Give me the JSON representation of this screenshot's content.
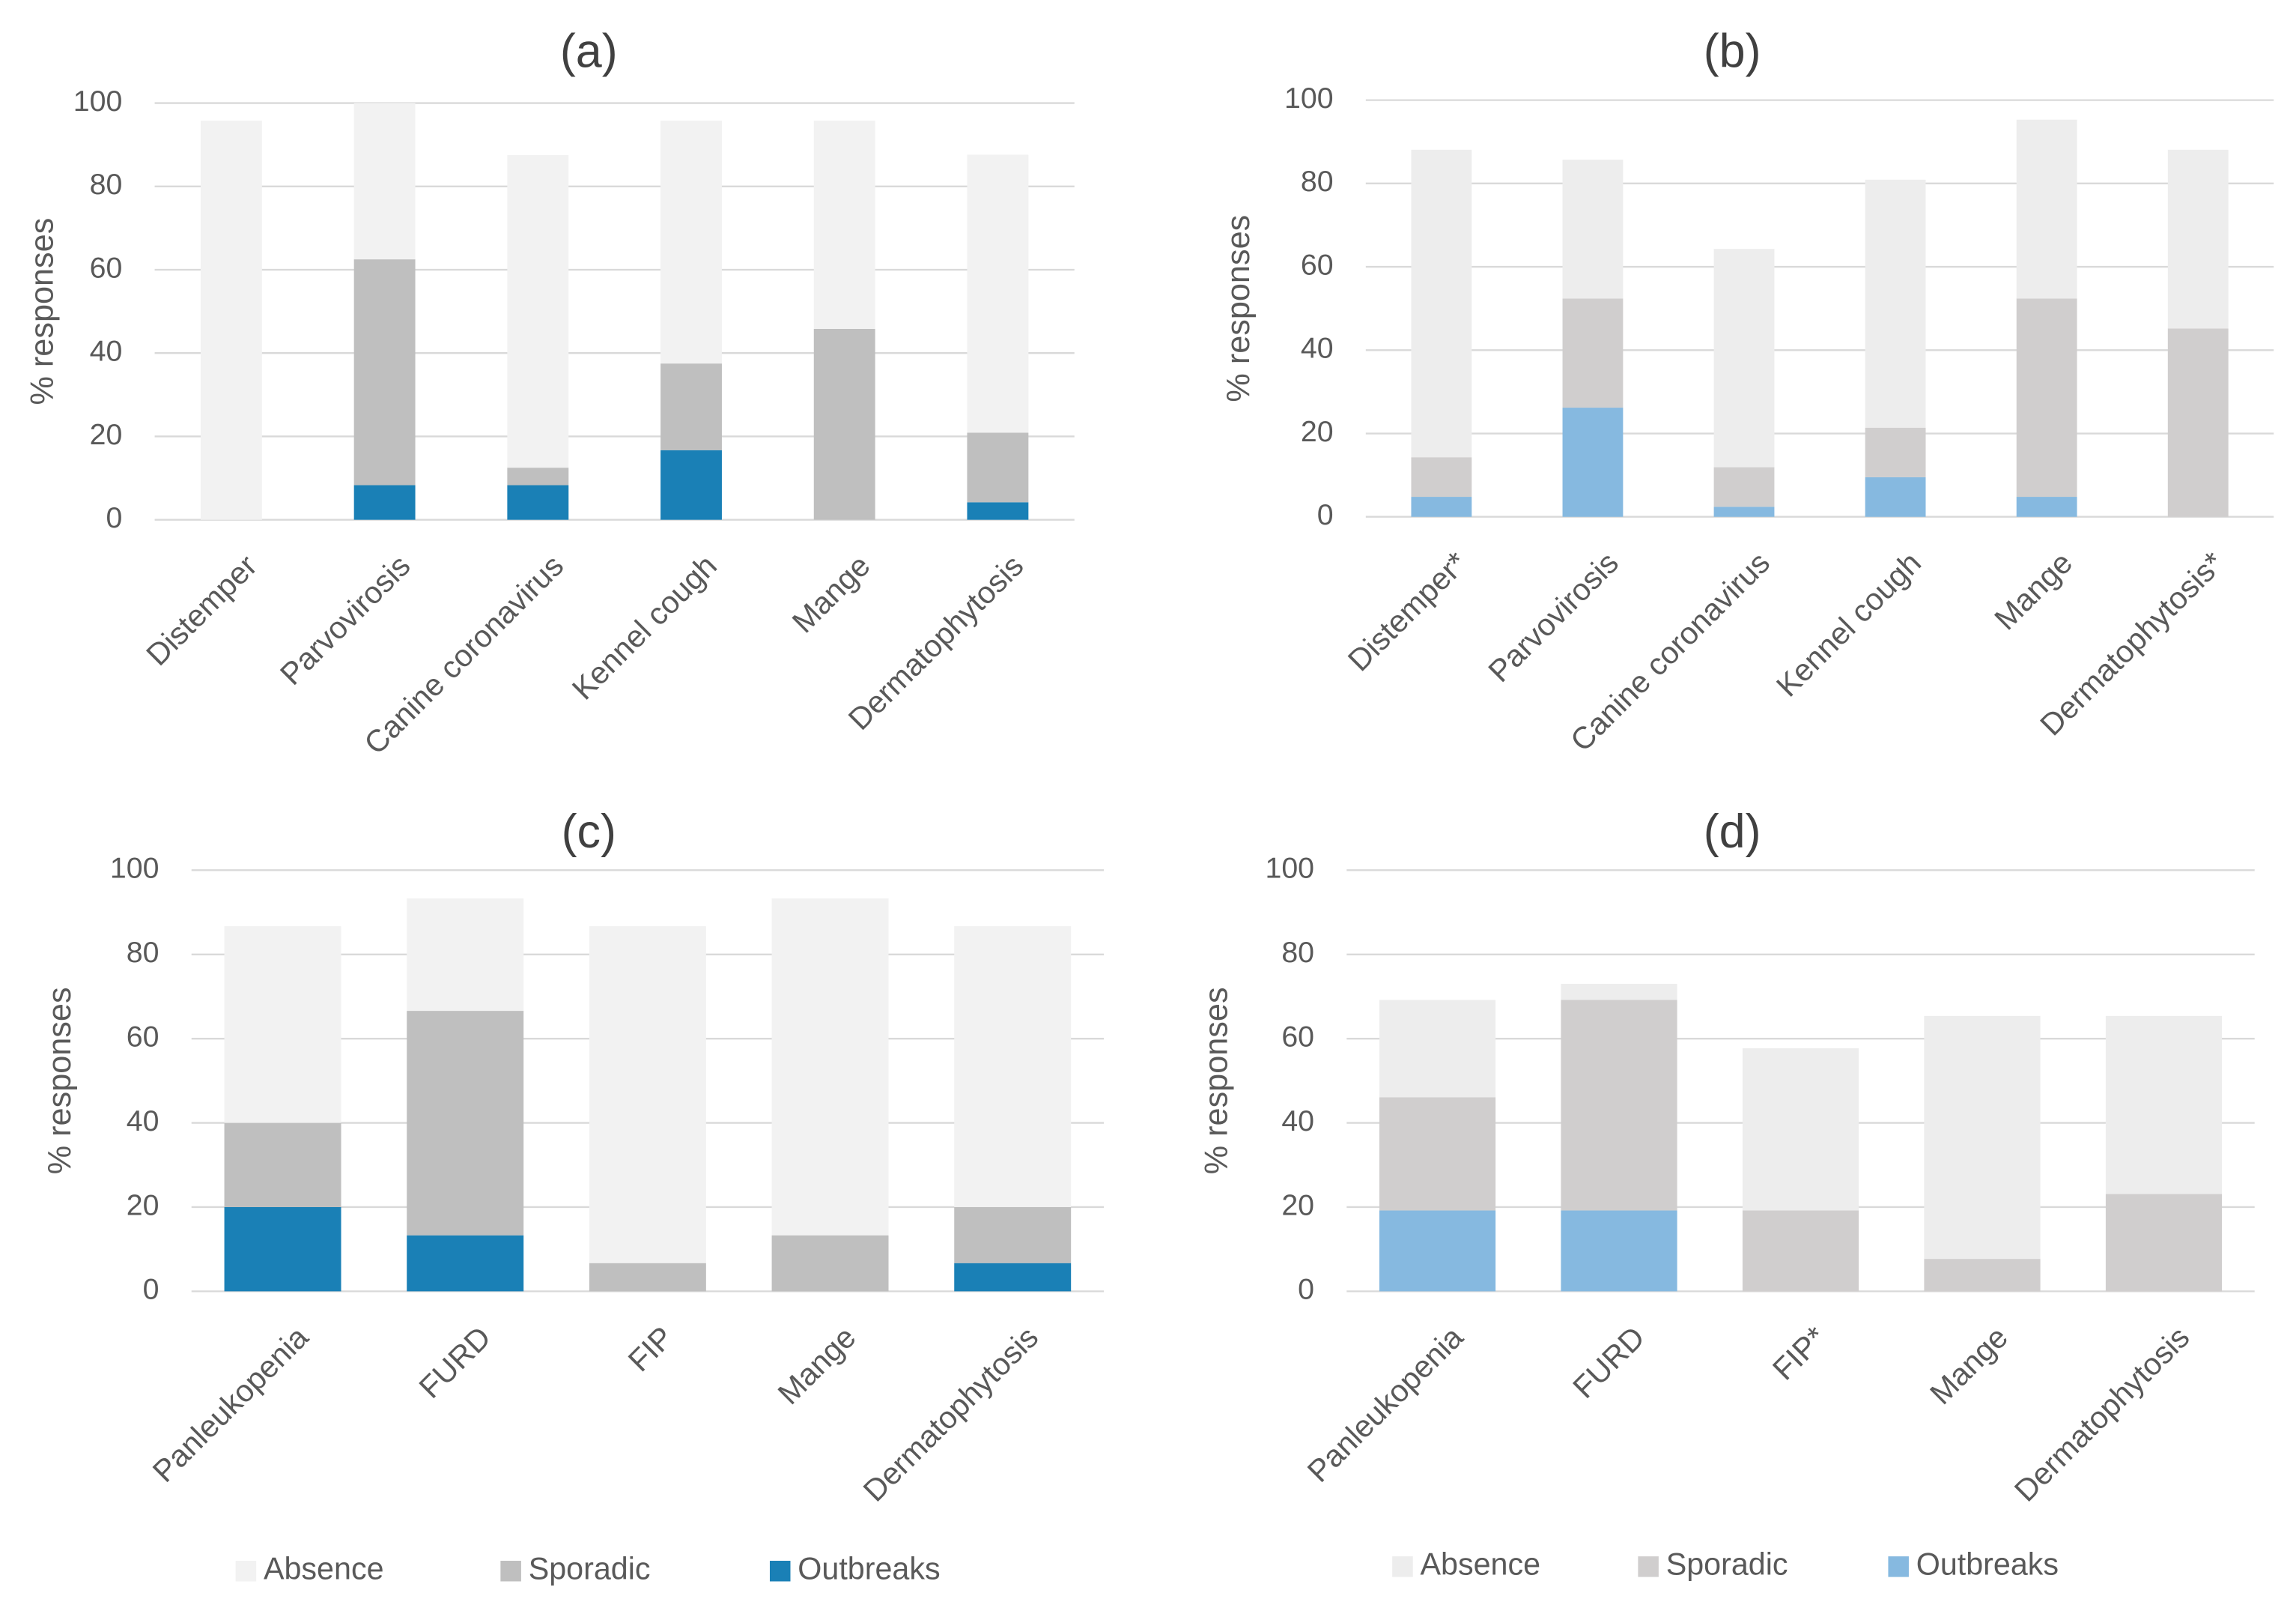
{
  "chart_data": [
    {
      "type": "bar",
      "stacked": true,
      "title": "(a)",
      "y_label": "% responses",
      "categories": [
        "Distemper",
        "Parvovirosis",
        "Canine coronavirus",
        "Kennel cough",
        "Mange",
        "Dermatophytosis"
      ],
      "series": [
        {
          "name": "Absence",
          "color": "#f2f2f2",
          "values": [
            95.8,
            37.5,
            75,
            58.3,
            50,
            66.7
          ]
        },
        {
          "name": "Sporadic",
          "color": "#bfbfbf",
          "values": [
            0,
            54.2,
            4.2,
            20.8,
            45.8,
            16.7
          ]
        },
        {
          "name": "Outbreaks",
          "color": "#1a80b6",
          "values": [
            0,
            8.3,
            8.3,
            16.7,
            0,
            4.2
          ]
        }
      ],
      "ylim": [
        0,
        100
      ],
      "yticks": [
        0,
        20,
        40,
        60,
        80,
        100
      ],
      "grid": true
    },
    {
      "type": "bar",
      "stacked": true,
      "title": "(b)",
      "y_label": "% responses",
      "categories": [
        "Distemper*",
        "Parvovirosis",
        "Canine coronavirus",
        "Kennel cough",
        "Mange",
        "Dermatophytosis*"
      ],
      "series": [
        {
          "name": "Absence",
          "color": "#ededed",
          "values": [
            73.8,
            33.3,
            52.4,
            59.5,
            42.9,
            42.9
          ]
        },
        {
          "name": "Sporadic",
          "color": "#d0cece",
          "values": [
            9.5,
            26.2,
            9.5,
            11.9,
            47.6,
            45.2
          ]
        },
        {
          "name": "Outbreaks",
          "color": "#86b9e0",
          "values": [
            4.8,
            26.2,
            2.4,
            9.5,
            4.8,
            0
          ]
        }
      ],
      "ylim": [
        0,
        100
      ],
      "yticks": [
        0,
        20,
        40,
        60,
        80,
        100
      ],
      "grid": true
    },
    {
      "type": "bar",
      "stacked": true,
      "title": "(c)",
      "y_label": "% responses",
      "categories": [
        "Panleukopenia",
        "FURD",
        "FIP",
        "Mange",
        "Dermatophytosis"
      ],
      "series": [
        {
          "name": "Absence",
          "color": "#f2f2f2",
          "values": [
            46.7,
            26.7,
            80,
            80,
            66.7
          ]
        },
        {
          "name": "Sporadic",
          "color": "#bfbfbf",
          "values": [
            20,
            53.3,
            6.7,
            13.3,
            13.3
          ]
        },
        {
          "name": "Outbreaks",
          "color": "#1a80b6",
          "values": [
            20,
            13.3,
            0,
            0,
            6.7
          ]
        }
      ],
      "ylim": [
        0,
        100
      ],
      "yticks": [
        0,
        20,
        40,
        60,
        80,
        100
      ],
      "grid": true,
      "legend": "bottom"
    },
    {
      "type": "bar",
      "stacked": true,
      "title": "(d)",
      "y_label": "% responses",
      "categories": [
        "Panleukopenia",
        "FURD",
        "FIP*",
        "Mange",
        "Dermatophytosis"
      ],
      "series": [
        {
          "name": "Absence",
          "color": "#ededed",
          "values": [
            23.1,
            3.8,
            38.5,
            57.7,
            42.3
          ]
        },
        {
          "name": "Sporadic",
          "color": "#d0cece",
          "values": [
            26.9,
            50,
            19.2,
            7.7,
            23.1
          ]
        },
        {
          "name": "Outbreaks",
          "color": "#86b9e0",
          "values": [
            19.2,
            19.2,
            0,
            0,
            0
          ]
        }
      ],
      "ylim": [
        0,
        100
      ],
      "yticks": [
        0,
        20,
        40,
        60,
        80,
        100
      ],
      "grid": true,
      "legend": "bottom"
    }
  ]
}
